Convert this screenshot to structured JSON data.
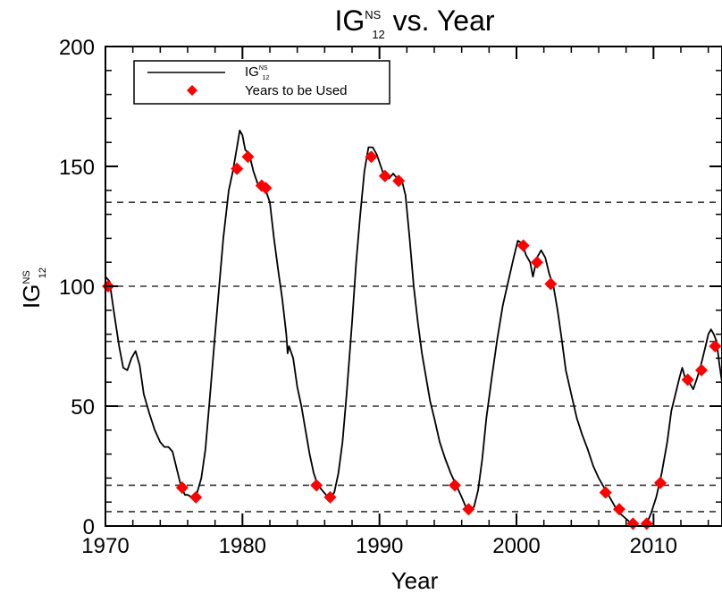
{
  "chart_data": {
    "type": "line",
    "title": {
      "base": "IG",
      "sup": "NS",
      "sub": "12",
      "rest": " vs. Year"
    },
    "xlabel": "Year",
    "ylabel": {
      "base": "IG",
      "sup": "NS",
      "sub": "12"
    },
    "xlim": [
      1970,
      2015
    ],
    "ylim": [
      0,
      200
    ],
    "x_ticks": [
      1970,
      1980,
      1990,
      2000,
      2010
    ],
    "y_ticks": [
      0,
      50,
      100,
      150,
      200
    ],
    "grid": "dashed horizontal reference lines",
    "reference_lines": [
      6,
      17,
      50,
      77,
      100,
      135
    ],
    "legend": {
      "placement": "top-left",
      "entries": [
        {
          "kind": "line",
          "label": {
            "base": "IG",
            "sup": "NS",
            "sub": "12"
          }
        },
        {
          "kind": "marker",
          "label": "Years to be Used"
        }
      ]
    },
    "series": [
      {
        "kind": "line",
        "color": "#000000",
        "points": [
          [
            1970.0,
            104
          ],
          [
            1970.3,
            102
          ],
          [
            1970.6,
            90
          ],
          [
            1971.0,
            75
          ],
          [
            1971.3,
            66
          ],
          [
            1971.6,
            65
          ],
          [
            1971.9,
            70
          ],
          [
            1972.2,
            73
          ],
          [
            1972.5,
            67
          ],
          [
            1972.8,
            55
          ],
          [
            1973.2,
            47
          ],
          [
            1973.6,
            40
          ],
          [
            1974.0,
            35
          ],
          [
            1974.3,
            33
          ],
          [
            1974.6,
            33
          ],
          [
            1974.9,
            31
          ],
          [
            1975.2,
            24
          ],
          [
            1975.5,
            17
          ],
          [
            1975.8,
            13
          ],
          [
            1976.0,
            13
          ],
          [
            1976.3,
            12
          ],
          [
            1976.6,
            12
          ],
          [
            1977.0,
            20
          ],
          [
            1977.3,
            32
          ],
          [
            1977.6,
            52
          ],
          [
            1978.0,
            80
          ],
          [
            1978.3,
            100
          ],
          [
            1978.6,
            120
          ],
          [
            1979.0,
            140
          ],
          [
            1979.3,
            148
          ],
          [
            1979.6,
            158
          ],
          [
            1979.8,
            165
          ],
          [
            1980.0,
            163
          ],
          [
            1980.2,
            157
          ],
          [
            1980.5,
            155
          ],
          [
            1980.8,
            148
          ],
          [
            1981.1,
            143
          ],
          [
            1981.4,
            142
          ],
          [
            1981.7,
            140
          ],
          [
            1982.0,
            135
          ],
          [
            1982.3,
            120
          ],
          [
            1982.6,
            107
          ],
          [
            1982.9,
            95
          ],
          [
            1983.2,
            80
          ],
          [
            1983.3,
            72
          ],
          [
            1983.4,
            75
          ],
          [
            1983.7,
            70
          ],
          [
            1984.0,
            58
          ],
          [
            1984.3,
            50
          ],
          [
            1984.6,
            40
          ],
          [
            1984.9,
            30
          ],
          [
            1985.2,
            22
          ],
          [
            1985.5,
            17
          ],
          [
            1985.8,
            15
          ],
          [
            1986.1,
            13
          ],
          [
            1986.4,
            12
          ],
          [
            1986.7,
            14
          ],
          [
            1987.0,
            22
          ],
          [
            1987.3,
            35
          ],
          [
            1987.6,
            55
          ],
          [
            1988.0,
            85
          ],
          [
            1988.3,
            110
          ],
          [
            1988.6,
            130
          ],
          [
            1988.9,
            148
          ],
          [
            1989.2,
            158
          ],
          [
            1989.5,
            158
          ],
          [
            1989.8,
            155
          ],
          [
            1990.1,
            150
          ],
          [
            1990.4,
            145
          ],
          [
            1990.7,
            145
          ],
          [
            1991.0,
            147
          ],
          [
            1991.3,
            145
          ],
          [
            1991.6,
            145
          ],
          [
            1991.9,
            138
          ],
          [
            1992.2,
            120
          ],
          [
            1992.5,
            100
          ],
          [
            1992.8,
            85
          ],
          [
            1993.1,
            72
          ],
          [
            1993.4,
            62
          ],
          [
            1993.7,
            52
          ],
          [
            1994.0,
            45
          ],
          [
            1994.4,
            35
          ],
          [
            1994.8,
            28
          ],
          [
            1995.2,
            22
          ],
          [
            1995.6,
            17
          ],
          [
            1996.0,
            12
          ],
          [
            1996.3,
            8
          ],
          [
            1996.6,
            7
          ],
          [
            1996.9,
            8
          ],
          [
            1997.2,
            15
          ],
          [
            1997.5,
            28
          ],
          [
            1997.8,
            45
          ],
          [
            1998.2,
            62
          ],
          [
            1998.6,
            78
          ],
          [
            1999.0,
            92
          ],
          [
            1999.4,
            102
          ],
          [
            1999.8,
            112
          ],
          [
            2000.1,
            119
          ],
          [
            2000.4,
            118
          ],
          [
            2000.7,
            113
          ],
          [
            2001.0,
            110
          ],
          [
            2001.2,
            104
          ],
          [
            2001.5,
            112
          ],
          [
            2001.8,
            115
          ],
          [
            2002.1,
            112
          ],
          [
            2002.4,
            105
          ],
          [
            2002.7,
            100
          ],
          [
            2003.0,
            90
          ],
          [
            2003.3,
            78
          ],
          [
            2003.6,
            65
          ],
          [
            2004.0,
            55
          ],
          [
            2004.4,
            45
          ],
          [
            2004.8,
            38
          ],
          [
            2005.2,
            32
          ],
          [
            2005.6,
            25
          ],
          [
            2006.0,
            20
          ],
          [
            2006.4,
            16
          ],
          [
            2006.8,
            12
          ],
          [
            2007.2,
            8
          ],
          [
            2007.6,
            5
          ],
          [
            2008.0,
            3
          ],
          [
            2008.4,
            1
          ],
          [
            2008.8,
            0
          ],
          [
            2009.2,
            0
          ],
          [
            2009.5,
            1
          ],
          [
            2009.8,
            5
          ],
          [
            2010.2,
            12
          ],
          [
            2010.6,
            22
          ],
          [
            2011.0,
            35
          ],
          [
            2011.3,
            48
          ],
          [
            2011.6,
            55
          ],
          [
            2011.9,
            62
          ],
          [
            2012.1,
            66
          ],
          [
            2012.3,
            62
          ],
          [
            2012.6,
            60
          ],
          [
            2012.9,
            57
          ],
          [
            2013.2,
            62
          ],
          [
            2013.5,
            68
          ],
          [
            2013.8,
            75
          ],
          [
            2014.0,
            80
          ],
          [
            2014.2,
            82
          ],
          [
            2014.4,
            80
          ],
          [
            2014.6,
            77
          ],
          [
            2014.8,
            68
          ],
          [
            2015.0,
            60
          ]
        ]
      },
      {
        "kind": "scatter",
        "marker": "diamond",
        "color": "#ff0000",
        "points": [
          [
            1970.2,
            100
          ],
          [
            1975.6,
            16
          ],
          [
            1976.6,
            12
          ],
          [
            1979.6,
            149
          ],
          [
            1980.4,
            154
          ],
          [
            1981.4,
            142
          ],
          [
            1981.7,
            141
          ],
          [
            1985.4,
            17
          ],
          [
            1986.4,
            12
          ],
          [
            1989.4,
            154
          ],
          [
            1990.4,
            146
          ],
          [
            1991.4,
            144
          ],
          [
            1995.5,
            17
          ],
          [
            1996.5,
            7
          ],
          [
            2000.5,
            117
          ],
          [
            2001.5,
            110
          ],
          [
            2002.5,
            101
          ],
          [
            2006.5,
            14
          ],
          [
            2007.5,
            7
          ],
          [
            2008.5,
            1
          ],
          [
            2009.5,
            1
          ],
          [
            2010.5,
            18
          ],
          [
            2012.5,
            61
          ],
          [
            2013.5,
            65
          ],
          [
            2014.5,
            75
          ]
        ]
      }
    ]
  }
}
